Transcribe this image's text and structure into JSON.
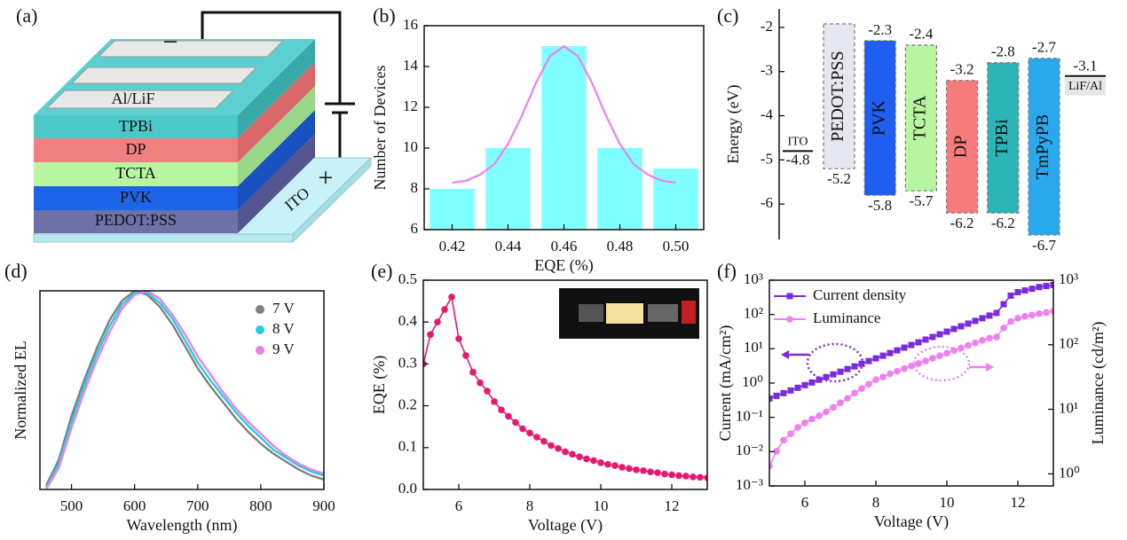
{
  "diagram": {
    "label": "(a)",
    "layers": [
      "Al/LiF",
      "TPBi",
      "DP",
      "TCTA",
      "PVK",
      "PEDOT:PSS"
    ],
    "substrate": "ITO",
    "cathode": "−",
    "anode": "+"
  },
  "chart_data": [
    {
      "type": "bar",
      "label": "(b)",
      "xlabel": "EQE (%)",
      "ylabel": "Number of Devices",
      "x": [
        0.42,
        0.44,
        0.46,
        0.48,
        0.5
      ],
      "values": [
        8,
        10,
        15,
        10,
        9
      ],
      "color": "#80ffff",
      "fit": {
        "x": [
          0.42,
          0.425,
          0.43,
          0.435,
          0.44,
          0.445,
          0.45,
          0.455,
          0.46,
          0.465,
          0.47,
          0.475,
          0.48,
          0.485,
          0.49,
          0.495,
          0.5
        ],
        "values": [
          8.3,
          8.4,
          8.7,
          9.2,
          10.2,
          11.6,
          13.2,
          14.5,
          15.0,
          14.5,
          13.2,
          11.6,
          10.2,
          9.2,
          8.7,
          8.4,
          8.3
        ],
        "color": "#f07ff0"
      },
      "xlim": [
        0.41,
        0.51
      ],
      "xticks": [
        0.42,
        0.44,
        0.46,
        0.48,
        {
          "value": 0.5,
          "label": "0.50"
        }
      ],
      "ylim": [
        6,
        16
      ],
      "yticks": [
        6,
        8,
        10,
        12,
        14,
        16
      ]
    },
    {
      "type": "energy-level",
      "label": "(c)",
      "ylabel": "Energy (eV)",
      "materials": [
        "PEDOT:PSS",
        "PVK",
        "TCTA",
        "DP",
        "TPBi",
        "TmPyPB"
      ],
      "lumo": [
        -1.92,
        -2.3,
        -2.4,
        -3.2,
        -2.8,
        -2.7
      ],
      "lumo_value_labels": [
        null,
        "-2.3",
        "-2.4",
        "-3.2",
        "-2.8",
        "-2.7"
      ],
      "homo": [
        -5.2,
        -5.8,
        -5.7,
        -6.2,
        -6.2,
        -6.7
      ],
      "colors": [
        "#e6e6f0",
        "#1e5ef0",
        "#b8f5a0",
        "#f77b7b",
        "#2bb5b5",
        "#2aa8ee"
      ],
      "dashed": true,
      "anode": {
        "name": "ITO",
        "value": -4.8
      },
      "cathode": {
        "name": "LiF/Al",
        "value": -3.1
      },
      "ylim": [
        -6.8,
        -1.58
      ],
      "yticks": [
        -6,
        -5,
        -4,
        -3,
        -2
      ]
    },
    {
      "type": "line",
      "label": "(d)",
      "xlabel": "Wavelength (nm)",
      "ylabel": "Normalized EL",
      "x": [
        460,
        480,
        500,
        520,
        540,
        560,
        580,
        600,
        620,
        640,
        660,
        680,
        700,
        720,
        740,
        760,
        780,
        800,
        820,
        840,
        860,
        880,
        900
      ],
      "series": [
        {
          "name": "7 V",
          "color": "#808080",
          "values": [
            0.02,
            0.15,
            0.37,
            0.55,
            0.71,
            0.85,
            0.95,
            1.0,
            0.98,
            0.92,
            0.83,
            0.72,
            0.61,
            0.52,
            0.44,
            0.36,
            0.29,
            0.23,
            0.18,
            0.14,
            0.1,
            0.07,
            0.05
          ]
        },
        {
          "name": "8 V",
          "color": "#20d0e0",
          "values": [
            0.01,
            0.13,
            0.34,
            0.52,
            0.68,
            0.82,
            0.93,
            0.99,
            0.99,
            0.94,
            0.86,
            0.75,
            0.64,
            0.55,
            0.47,
            0.39,
            0.32,
            0.26,
            0.2,
            0.16,
            0.12,
            0.09,
            0.07
          ]
        },
        {
          "name": "9 V",
          "color": "#f080e0",
          "values": [
            0.0,
            0.11,
            0.31,
            0.49,
            0.65,
            0.79,
            0.91,
            0.98,
            1.0,
            0.96,
            0.88,
            0.78,
            0.67,
            0.58,
            0.49,
            0.41,
            0.34,
            0.28,
            0.22,
            0.17,
            0.13,
            0.1,
            0.08
          ]
        }
      ],
      "legend": "upper right",
      "xlim": [
        450,
        900
      ],
      "xticks": [
        500,
        600,
        700,
        800,
        900
      ],
      "ylim": [
        0,
        1
      ]
    },
    {
      "type": "line",
      "label": "(e)",
      "xlabel": "Voltage (V)",
      "ylabel": "EQE (%)",
      "x": [
        5.0,
        5.2,
        5.4,
        5.6,
        5.8,
        6.0,
        6.2,
        6.4,
        6.6,
        6.8,
        7.0,
        7.2,
        7.4,
        7.6,
        7.8,
        8.0,
        8.2,
        8.4,
        8.6,
        8.8,
        9.0,
        9.2,
        9.4,
        9.6,
        9.8,
        10.0,
        10.2,
        10.4,
        10.6,
        10.8,
        11.0,
        11.2,
        11.4,
        11.6,
        11.8,
        12.0,
        12.2,
        12.4,
        12.6,
        12.8,
        13.0
      ],
      "series": [
        {
          "color": "#e8186e",
          "marker": "circle",
          "values": [
            0.3,
            0.37,
            0.4,
            0.43,
            0.46,
            0.36,
            0.32,
            0.28,
            0.255,
            0.235,
            0.21,
            0.19,
            0.175,
            0.16,
            0.145,
            0.135,
            0.125,
            0.115,
            0.105,
            0.098,
            0.09,
            0.084,
            0.078,
            0.073,
            0.069,
            0.064,
            0.06,
            0.057,
            0.053,
            0.05,
            0.047,
            0.045,
            0.042,
            0.04,
            0.037,
            0.035,
            0.033,
            0.032,
            0.03,
            0.029,
            0.028
          ]
        }
      ],
      "xlim": [
        5,
        13
      ],
      "xticks": [
        6,
        8,
        10,
        12
      ],
      "ylim": [
        0,
        0.5
      ],
      "yticks": [
        {
          "value": 0,
          "label": "0.0"
        },
        0.1,
        0.2,
        0.3,
        0.4,
        0.5
      ]
    },
    {
      "type": "line",
      "label": "(f)",
      "xlabel": "Voltage (V)",
      "ylabel": "Current (mA/cm²)",
      "y2label": "Luminance (cd/m²)",
      "x": [
        5.0,
        5.2,
        5.4,
        5.6,
        5.8,
        6.0,
        6.2,
        6.4,
        6.6,
        6.8,
        7.0,
        7.2,
        7.4,
        7.6,
        7.8,
        8.0,
        8.2,
        8.4,
        8.6,
        8.8,
        9.0,
        9.2,
        9.4,
        9.6,
        9.8,
        10.0,
        10.2,
        10.4,
        10.6,
        10.8,
        11.0,
        11.2,
        11.4,
        11.6,
        11.8,
        12.0,
        12.2,
        12.4,
        12.6,
        12.8,
        13.0
      ],
      "series": [
        {
          "name": "Current density",
          "color": "#7a2be0",
          "marker": "square",
          "values": [
            0.355,
            0.425,
            0.508,
            0.608,
            0.728,
            0.871,
            1.04,
            1.25,
            1.49,
            1.79,
            2.14,
            2.56,
            3.06,
            3.66,
            4.39,
            5.25,
            6.28,
            7.52,
            8.99,
            10.8,
            12.9,
            15.4,
            18.5,
            22.1,
            26.4,
            31.6,
            37.8,
            45.3,
            54.2,
            64.9,
            77.6,
            92.9,
            111,
            200,
            355,
            447,
            501,
            562,
            631,
            676,
            724
          ]
        },
        {
          "name": "Luminance",
          "color": "#f07ff0",
          "marker": "circle",
          "axis": "y2",
          "values": [
            1.32,
            2.24,
            3.31,
            4.17,
            5.25,
            6.17,
            7.08,
            7.94,
            9.12,
            10.7,
            12.6,
            14.8,
            17.8,
            20.9,
            24.5,
            28.8,
            31.6,
            35.5,
            38.9,
            42.7,
            46.8,
            51.3,
            56.2,
            61.7,
            67.6,
            74.1,
            81.3,
            89.1,
            97.7,
            107,
            117,
            126,
            132,
            182,
            229,
            257,
            275,
            288,
            302,
            316,
            331
          ]
        }
      ],
      "legend": "upper left",
      "xlim": [
        5,
        13
      ],
      "xticks": [
        6,
        8,
        10,
        12
      ],
      "ylim": [
        0.001,
        1000
      ],
      "ylog": true,
      "yticks": [
        {
          "value": 0.001,
          "label": "10⁻³"
        },
        {
          "value": 0.01,
          "label": "10⁻²"
        },
        {
          "value": 0.1,
          "label": "10⁻¹"
        },
        {
          "value": 1,
          "label": "10⁰"
        },
        {
          "value": 10,
          "label": "10¹"
        },
        {
          "value": 100,
          "label": "10²"
        },
        {
          "value": 1000,
          "label": "10³"
        }
      ],
      "y2lim": [
        0.65,
        1000
      ],
      "y2log": true,
      "y2ticks": [
        {
          "value": 1,
          "label": "10⁰"
        },
        {
          "value": 10,
          "label": "10¹"
        },
        {
          "value": 100,
          "label": "10²"
        },
        {
          "value": 1000,
          "label": "10³"
        }
      ]
    }
  ]
}
